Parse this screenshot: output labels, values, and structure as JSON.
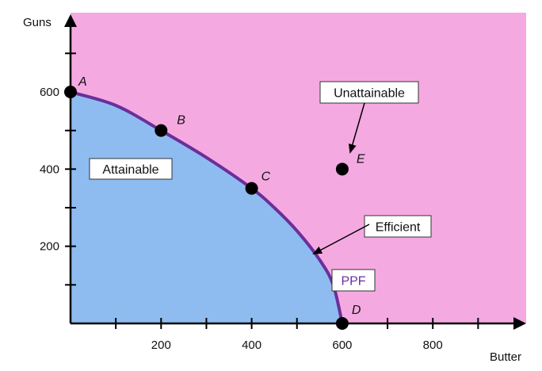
{
  "chart_data": {
    "type": "line",
    "xlabel": "Butter",
    "ylabel": "Guns",
    "xlim": [
      0,
      1000
    ],
    "ylim": [
      0,
      800
    ],
    "x_ticks": [
      100,
      200,
      300,
      400,
      500,
      600,
      700,
      800,
      900
    ],
    "x_tick_labels": [
      "",
      "200",
      "",
      "400",
      "",
      "600",
      "",
      "800",
      ""
    ],
    "y_ticks": [
      100,
      200,
      300,
      400,
      500,
      600,
      700
    ],
    "y_tick_labels": [
      "",
      "200",
      "",
      "400",
      "",
      "600",
      ""
    ],
    "series": [
      {
        "name": "PPF",
        "x": [
          0,
          100,
          200,
          300,
          400,
          450,
          500,
          550,
          580,
          600
        ],
        "y": [
          600,
          565,
          500,
          430,
          350,
          300,
          240,
          165,
          100,
          0
        ]
      }
    ],
    "points": [
      {
        "label": "A",
        "x": 0,
        "y": 600
      },
      {
        "label": "B",
        "x": 200,
        "y": 500
      },
      {
        "label": "C",
        "x": 400,
        "y": 350
      },
      {
        "label": "D",
        "x": 600,
        "y": 0
      },
      {
        "label": "E",
        "x": 600,
        "y": 400
      }
    ],
    "annotations": {
      "attainable": "Attainable",
      "unattainable": "Unattainable",
      "efficient": "Efficient",
      "ppf": "PPF"
    },
    "grid": false
  },
  "colors": {
    "unattainable_region": "#f5a9e1",
    "attainable_region": "#8fbcf0",
    "ppf_curve": "#6a2f9a",
    "ppf_label": "#6a2f9a",
    "axis": "#000000",
    "point": "#000000"
  }
}
